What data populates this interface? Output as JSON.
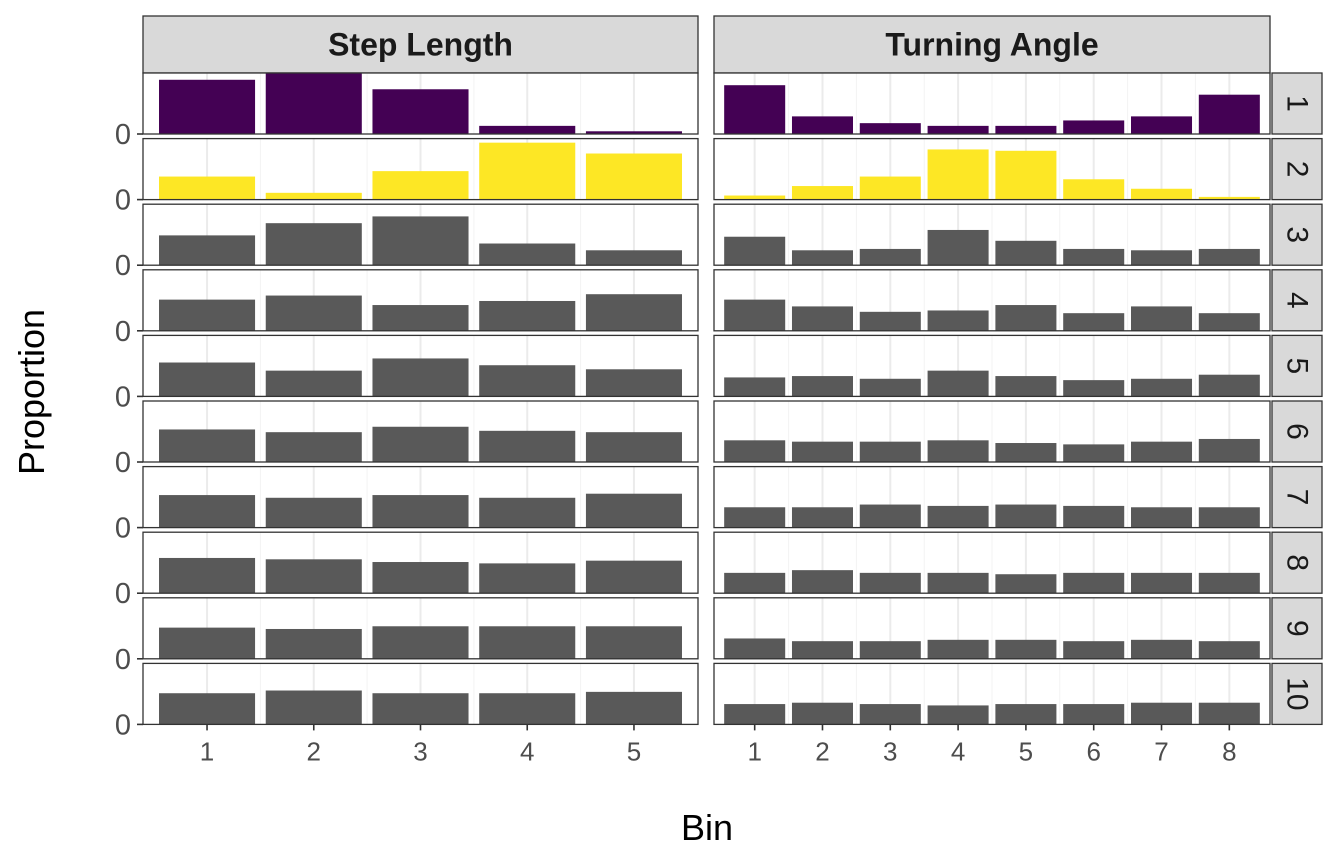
{
  "chart_data": {
    "type": "bar",
    "title": "",
    "xlabel": "Bin",
    "ylabel": "Proportion",
    "y_tick_label": "0",
    "grid": true,
    "legend": "none",
    "colors": {
      "row_1": "#440154",
      "row_2": "#FDE725",
      "default": "#595959",
      "strip_fill": "#D9D9D9",
      "panel_border": "#333333",
      "grid": "#EBEBEB"
    },
    "columns": [
      {
        "name": "Step Length",
        "categories": [
          "1",
          "2",
          "3",
          "4",
          "5"
        ],
        "ylim": [
          0,
          0.45
        ],
        "series": [
          {
            "row": "1",
            "values": [
              0.4,
              0.45,
              0.33,
              0.06,
              0.02
            ]
          },
          {
            "row": "2",
            "values": [
              0.17,
              0.05,
              0.21,
              0.42,
              0.34
            ]
          },
          {
            "row": "3",
            "values": [
              0.22,
              0.31,
              0.36,
              0.16,
              0.11
            ]
          },
          {
            "row": "4",
            "values": [
              0.23,
              0.26,
              0.19,
              0.22,
              0.27
            ]
          },
          {
            "row": "5",
            "values": [
              0.25,
              0.19,
              0.28,
              0.23,
              0.2
            ]
          },
          {
            "row": "6",
            "values": [
              0.24,
              0.22,
              0.26,
              0.23,
              0.22
            ]
          },
          {
            "row": "7",
            "values": [
              0.24,
              0.22,
              0.24,
              0.22,
              0.25
            ]
          },
          {
            "row": "8",
            "values": [
              0.26,
              0.25,
              0.23,
              0.22,
              0.24
            ]
          },
          {
            "row": "9",
            "values": [
              0.23,
              0.22,
              0.24,
              0.24,
              0.24
            ]
          },
          {
            "row": "10",
            "values": [
              0.23,
              0.25,
              0.23,
              0.23,
              0.24
            ]
          }
        ]
      },
      {
        "name": "Turning Angle",
        "categories": [
          "1",
          "2",
          "3",
          "4",
          "5",
          "6",
          "7",
          "8"
        ],
        "ylim": [
          0,
          0.45
        ],
        "series": [
          {
            "row": "1",
            "values": [
              0.36,
              0.13,
              0.08,
              0.06,
              0.06,
              0.1,
              0.13,
              0.29
            ]
          },
          {
            "row": "2",
            "values": [
              0.03,
              0.1,
              0.17,
              0.37,
              0.36,
              0.15,
              0.08,
              0.02
            ]
          },
          {
            "row": "3",
            "values": [
              0.21,
              0.11,
              0.12,
              0.26,
              0.18,
              0.12,
              0.11,
              0.12
            ]
          },
          {
            "row": "4",
            "values": [
              0.23,
              0.18,
              0.14,
              0.15,
              0.19,
              0.13,
              0.18,
              0.13
            ]
          },
          {
            "row": "5",
            "values": [
              0.14,
              0.15,
              0.13,
              0.19,
              0.15,
              0.12,
              0.13,
              0.16
            ]
          },
          {
            "row": "6",
            "values": [
              0.16,
              0.15,
              0.15,
              0.16,
              0.14,
              0.13,
              0.15,
              0.17
            ]
          },
          {
            "row": "7",
            "values": [
              0.15,
              0.15,
              0.17,
              0.16,
              0.17,
              0.16,
              0.15,
              0.15
            ]
          },
          {
            "row": "8",
            "values": [
              0.15,
              0.17,
              0.15,
              0.15,
              0.14,
              0.15,
              0.15,
              0.15
            ]
          },
          {
            "row": "9",
            "values": [
              0.15,
              0.13,
              0.13,
              0.14,
              0.14,
              0.13,
              0.14,
              0.13
            ]
          },
          {
            "row": "10",
            "values": [
              0.15,
              0.16,
              0.15,
              0.14,
              0.15,
              0.15,
              0.16,
              0.16
            ]
          }
        ]
      }
    ]
  }
}
